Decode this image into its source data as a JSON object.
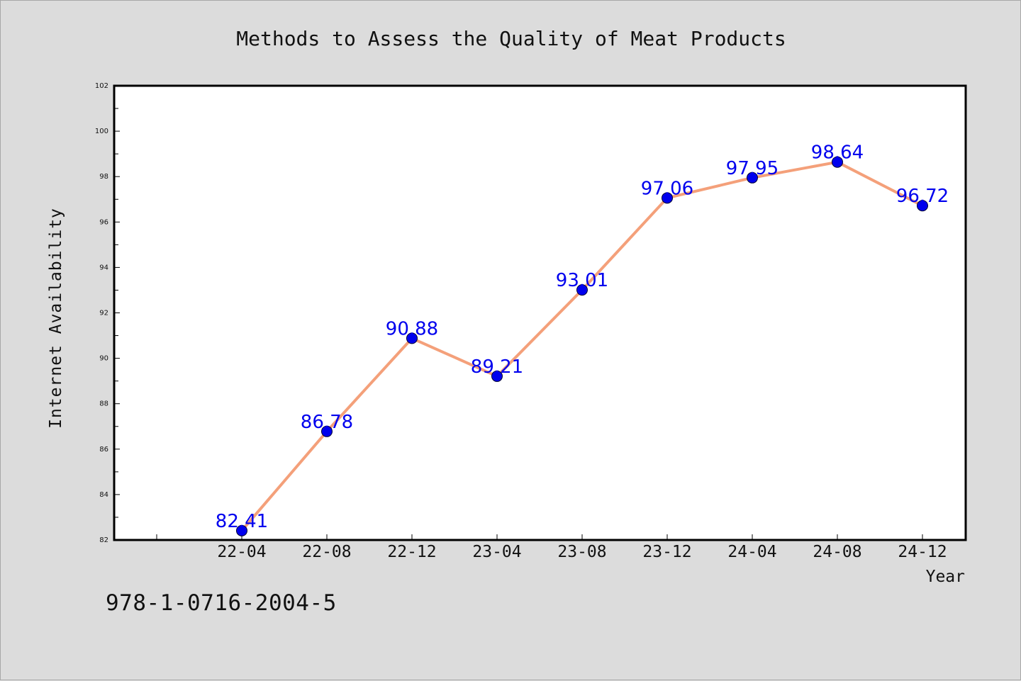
{
  "chart_data": {
    "type": "line",
    "title": "Methods to Assess the Quality of Meat Products",
    "xlabel": "Year",
    "ylabel": "Internet Availability",
    "categories": [
      "22-04",
      "22-08",
      "22-12",
      "23-04",
      "23-08",
      "23-12",
      "24-04",
      "24-08",
      "24-12"
    ],
    "values": [
      82.41,
      86.78,
      90.88,
      89.21,
      93.01,
      97.06,
      97.95,
      98.64,
      96.72
    ],
    "ylim": [
      82,
      102
    ],
    "yticks": [
      "82",
      "84",
      "86",
      "88",
      "90",
      "92",
      "94",
      "96",
      "98",
      "100",
      "102"
    ],
    "grid": false,
    "line_color": "#f4a07a",
    "marker_color": "#0000ee",
    "label_color": "#0000ee"
  },
  "footer": {
    "isbn": "978-1-0716-2004-5"
  }
}
